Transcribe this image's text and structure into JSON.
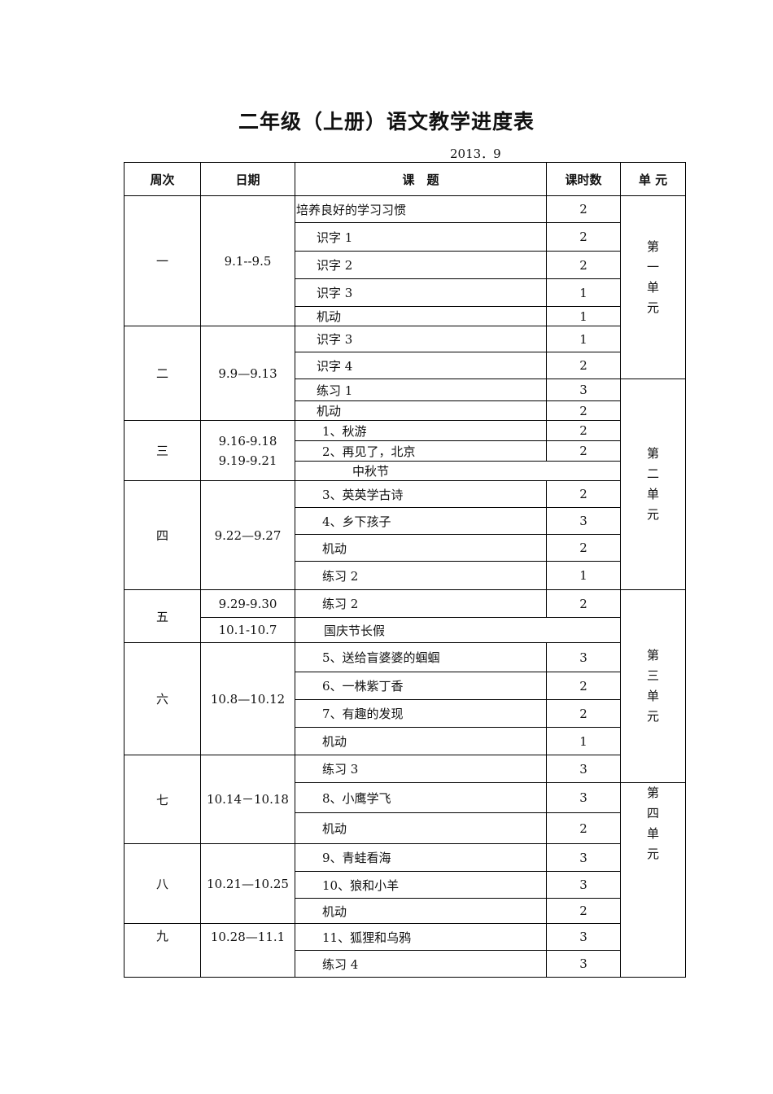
{
  "title": "二年级（上册）语文教学进度表",
  "date": "2013．9",
  "headers": [
    "周次",
    "日期",
    "课　题",
    "课时数",
    "单 元"
  ],
  "weeks": [
    {
      "label": "一",
      "date_cells": [
        [
          "9.1--9.5"
        ]
      ]
    },
    {
      "label": "二",
      "date_cells": [
        [
          "9.9—9.13"
        ]
      ]
    },
    {
      "label": "三",
      "date_cells": [
        [
          "9.16-9.18",
          "9.19-9.21"
        ]
      ]
    },
    {
      "label": "四",
      "date_cells": [
        [
          "9.22—9.27"
        ]
      ]
    },
    {
      "label": "五",
      "date_cells": [
        [
          "9.29-9.30"
        ],
        [
          "10.1-10.7"
        ]
      ]
    },
    {
      "label": "六",
      "date_cells": [
        [
          "10.8—10.12"
        ]
      ]
    },
    {
      "label": "七",
      "date_cells": [
        [
          "10.14－10.18"
        ]
      ]
    },
    {
      "label": "八",
      "date_cells": [
        [
          "10.21—10.25"
        ]
      ]
    },
    {
      "label": "九",
      "date_cells": [
        [
          "10.28—11.1"
        ]
      ]
    }
  ],
  "lessons": [
    {
      "title": "培养良好的学习习惯",
      "hours": "2"
    },
    {
      "title": "识字 1",
      "hours": "2"
    },
    {
      "title": "识字 2",
      "hours": "2"
    },
    {
      "title": "识字 3",
      "hours": "1"
    },
    {
      "title": "机动",
      "hours": "1"
    },
    {
      "title": "识字 3",
      "hours": "1"
    },
    {
      "title": "识字 4",
      "hours": "2"
    },
    {
      "title": "练习 1",
      "hours": "3"
    },
    {
      "title": "机动",
      "hours": "2"
    },
    {
      "title": "1、秋游",
      "hours": "2"
    },
    {
      "title": "2、再见了，北京",
      "hours": "2"
    },
    {
      "title": "中秋节",
      "hours": null
    },
    {
      "title": "3、英英学古诗",
      "hours": "2"
    },
    {
      "title": "4、乡下孩子",
      "hours": "3"
    },
    {
      "title": "机动",
      "hours": "2"
    },
    {
      "title": "练习 2",
      "hours": "1"
    },
    {
      "title": "练习 2",
      "hours": "2"
    },
    {
      "title": "国庆节长假",
      "hours": null
    },
    {
      "title": "5、送给盲婆婆的蝈蝈",
      "hours": "3"
    },
    {
      "title": "6、一株紫丁香",
      "hours": "2"
    },
    {
      "title": "7、有趣的发现",
      "hours": "2"
    },
    {
      "title": "机动",
      "hours": "1"
    },
    {
      "title": "练习 3",
      "hours": "3"
    },
    {
      "title": "8、小鹰学飞",
      "hours": "3"
    },
    {
      "title": "机动",
      "hours": "2"
    },
    {
      "title": "9、青蛙看海",
      "hours": "3"
    },
    {
      "title": "10、狼和小羊",
      "hours": "3"
    },
    {
      "title": "机动",
      "hours": "2"
    },
    {
      "title": "11、狐狸和乌鸦",
      "hours": "3"
    },
    {
      "title": "练习 4",
      "hours": "3"
    }
  ],
  "units": [
    "第一单元",
    "第二单元",
    "第三单元",
    "第四单元"
  ]
}
